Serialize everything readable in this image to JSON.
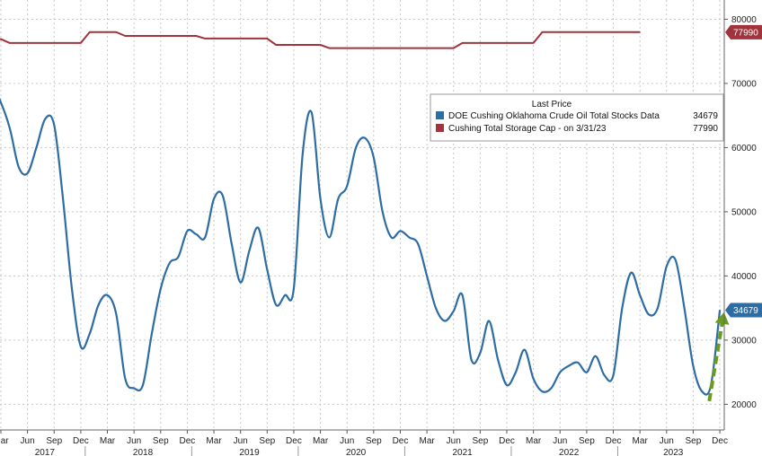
{
  "chart_data": {
    "type": "line",
    "grid": true,
    "legend_placement": "top-right",
    "x_start": "2017-03",
    "x_end": "2023-12",
    "ylim": [
      16000,
      83000
    ],
    "y_ticks": [
      20000,
      30000,
      40000,
      50000,
      60000,
      70000,
      80000
    ],
    "x_month_labels": [
      "Mar",
      "Jun",
      "Sep",
      "Dec",
      "Mar",
      "Jun",
      "Sep",
      "Dec",
      "Mar",
      "Jun",
      "Sep",
      "Dec",
      "Mar",
      "Jun",
      "Sep",
      "Dec",
      "Mar",
      "Jun",
      "Sep",
      "Dec",
      "Mar",
      "Jun",
      "Sep",
      "Dec",
      "Mar",
      "Jun",
      "Sep",
      "Dec"
    ],
    "x_year_labels": [
      "2017",
      "2018",
      "2019",
      "2020",
      "2021",
      "2022",
      "2023"
    ],
    "legend": {
      "title": "Last Price",
      "items": [
        {
          "label": "DOE Cushing Oklahoma Crude Oil Total Stocks Data",
          "value": "34679",
          "color": "#2e6ca4"
        },
        {
          "label": "Cushing Total Storage Cap -  on 3/31/23",
          "value": "77990",
          "color": "#a0333b"
        }
      ]
    },
    "series": [
      {
        "name": "DOE Cushing Oklahoma Crude Oil Total Stocks Data",
        "color": "#2e6ca4",
        "last_value_label": "34679",
        "x": [
          "2017-01",
          "2017-02",
          "2017-03",
          "2017-04",
          "2017-05",
          "2017-06",
          "2017-07",
          "2017-08",
          "2017-09",
          "2017-10",
          "2017-11",
          "2017-12",
          "2018-01",
          "2018-02",
          "2018-03",
          "2018-04",
          "2018-05",
          "2018-06",
          "2018-07",
          "2018-08",
          "2018-09",
          "2018-10",
          "2018-11",
          "2018-12",
          "2019-01",
          "2019-02",
          "2019-03",
          "2019-04",
          "2019-05",
          "2019-06",
          "2019-07",
          "2019-08",
          "2019-09",
          "2019-10",
          "2019-11",
          "2019-12",
          "2020-01",
          "2020-02",
          "2020-03",
          "2020-04",
          "2020-05",
          "2020-06",
          "2020-07",
          "2020-08",
          "2020-09",
          "2020-10",
          "2020-11",
          "2020-12",
          "2021-01",
          "2021-02",
          "2021-03",
          "2021-04",
          "2021-05",
          "2021-06",
          "2021-07",
          "2021-08",
          "2021-09",
          "2021-10",
          "2021-11",
          "2021-12",
          "2022-01",
          "2022-02",
          "2022-03",
          "2022-04",
          "2022-05",
          "2022-06",
          "2022-07",
          "2022-08",
          "2022-09",
          "2022-10",
          "2022-11",
          "2022-12",
          "2023-01",
          "2023-02",
          "2023-03",
          "2023-04",
          "2023-05",
          "2023-06",
          "2023-07",
          "2023-08",
          "2023-09",
          "2023-10",
          "2023-11",
          "2023-12"
        ],
        "values": [
          64000,
          69500,
          67000,
          63000,
          57000,
          56000,
          60000,
          64500,
          63500,
          52000,
          38000,
          29000,
          31000,
          35500,
          37000,
          34000,
          24000,
          22500,
          23000,
          31000,
          38000,
          42000,
          43000,
          47000,
          46500,
          46000,
          52000,
          52500,
          45000,
          39000,
          44000,
          47500,
          41000,
          35500,
          37000,
          38000,
          59000,
          65500,
          52000,
          46000,
          52000,
          54000,
          60000,
          61500,
          58500,
          50000,
          46000,
          47000,
          46000,
          45000,
          40000,
          35000,
          33000,
          34500,
          37000,
          27000,
          28000,
          33000,
          27000,
          23000,
          25000,
          28500,
          24000,
          22000,
          22500,
          25000,
          26000,
          26500,
          25000,
          27500,
          24500,
          24500,
          35000,
          40500,
          37000,
          34000,
          35000,
          41500,
          42500,
          35000,
          26000,
          22000,
          23000,
          34679
        ]
      },
      {
        "name": "Cushing Total Storage Cap -  on 3/31/23",
        "color": "#a0333b",
        "last_value_label": "77990",
        "x": [
          "2017-01",
          "2017-03",
          "2017-04",
          "2017-12",
          "2018-01",
          "2018-04",
          "2018-05",
          "2019-01",
          "2019-02",
          "2019-09",
          "2019-10",
          "2020-03",
          "2020-04",
          "2021-06",
          "2021-07",
          "2022-03",
          "2022-04",
          "2023-03"
        ],
        "values": [
          76900,
          76900,
          76300,
          76300,
          77990,
          77990,
          77400,
          77400,
          77000,
          77000,
          76000,
          76000,
          75500,
          75500,
          76300,
          76300,
          77990,
          77990
        ]
      }
    ]
  }
}
